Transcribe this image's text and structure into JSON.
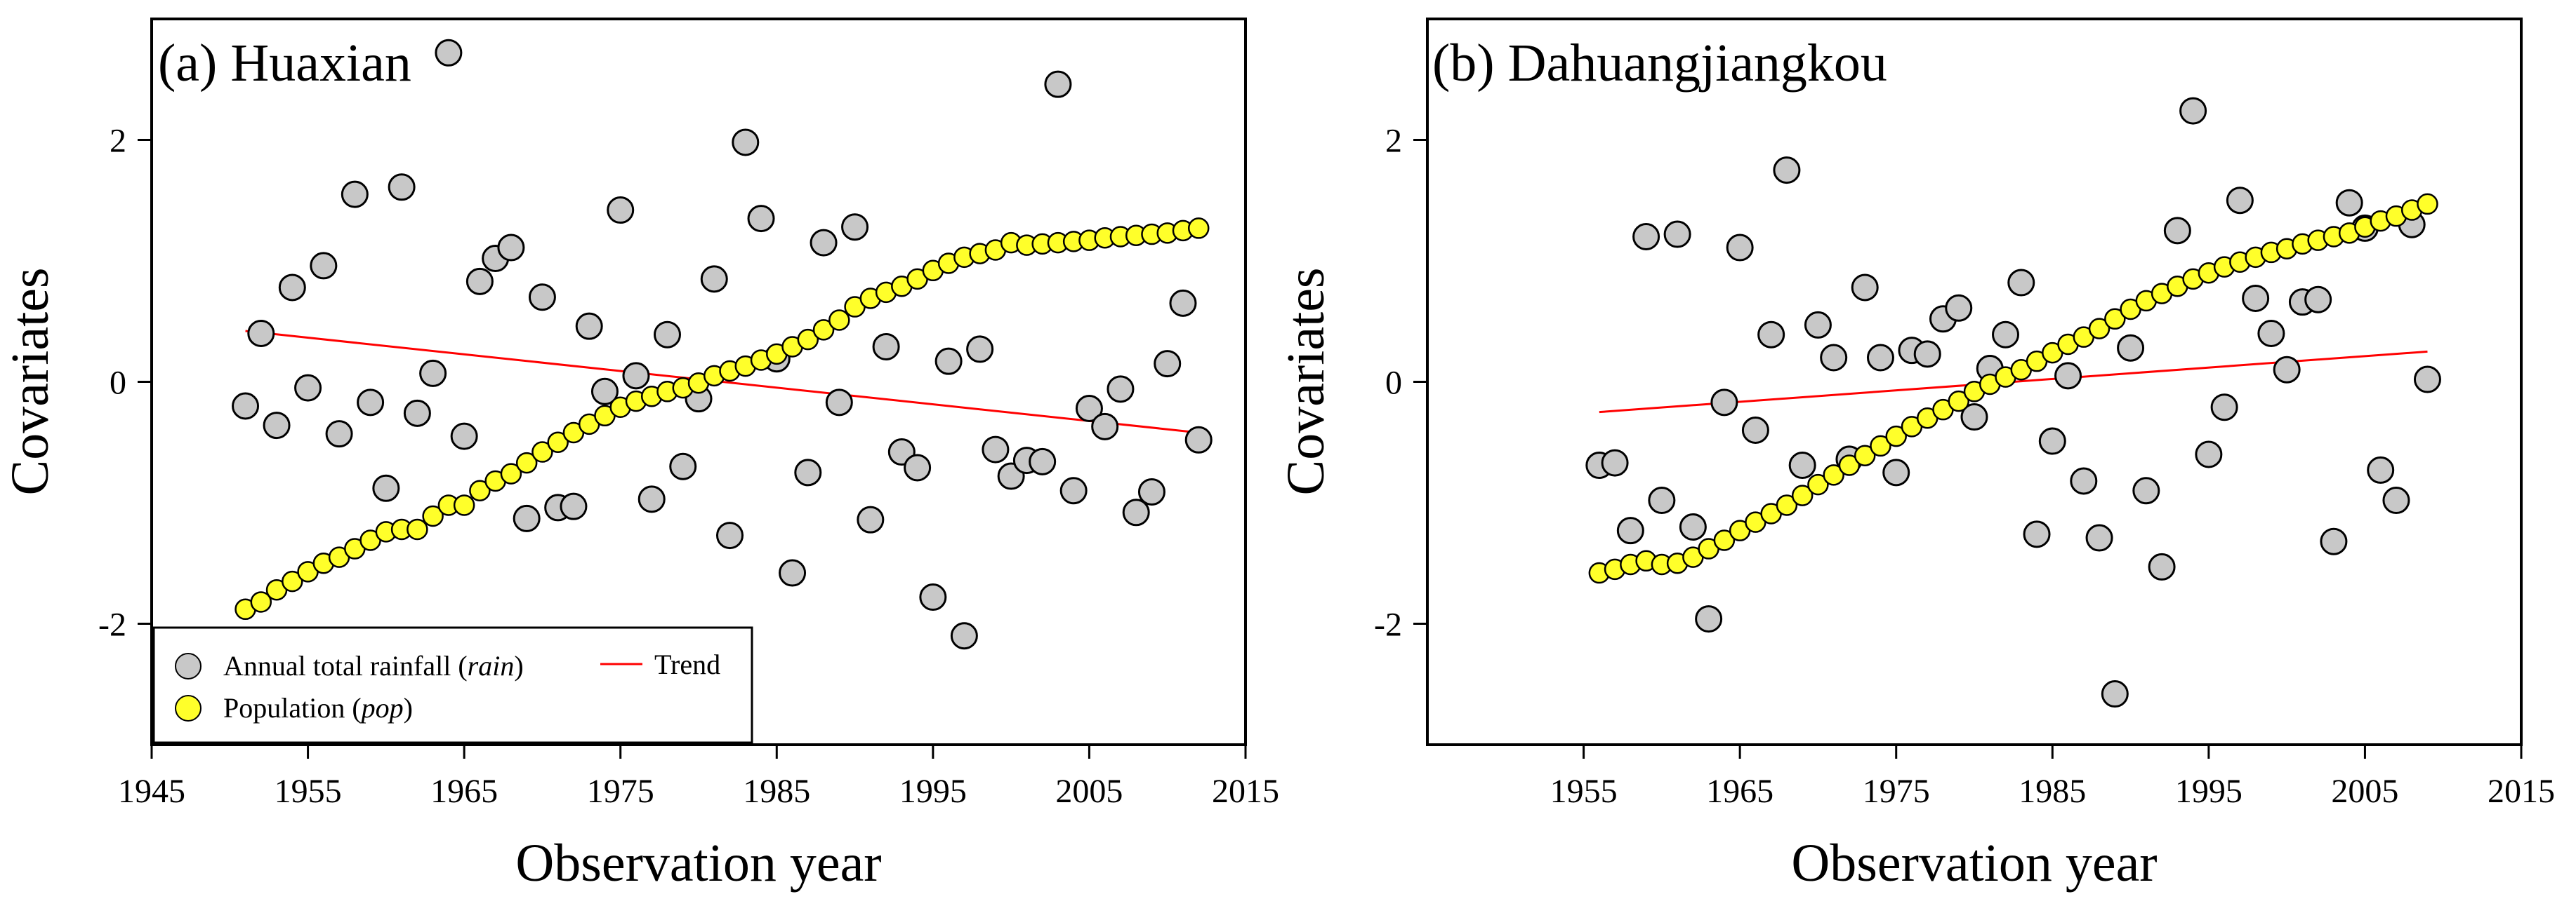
{
  "colors": {
    "rain_fill": "#c8c8c8",
    "pop_fill": "#ffff2a",
    "marker_stroke": "#000000",
    "trend": "#ff0000"
  },
  "chart_data": [
    {
      "type": "scatter",
      "panel_label": "(a) Huaxian",
      "xlabel": "Observation year",
      "ylabel": "Covariates",
      "xlim": [
        1945,
        2015
      ],
      "ylim": [
        -3,
        3
      ],
      "xticks": [
        1945,
        1955,
        1965,
        1975,
        1985,
        1995,
        2005,
        2015
      ],
      "yticks": [
        -2,
        0,
        2
      ],
      "legend": {
        "position": "bottom-left",
        "rain_label": "Annual total rainfall (",
        "rain_var": "rain",
        "rain_close": ")",
        "pop_label": "Population (",
        "pop_var": "pop",
        "pop_close": ")",
        "trend_label": "Trend"
      },
      "trend": {
        "x": [
          1951,
          2012
        ],
        "y": [
          0.42,
          -0.42
        ]
      },
      "series": [
        {
          "name": "Annual total rainfall (rain)",
          "x": [
            1951,
            1952,
            1953,
            1954,
            1955,
            1956,
            1957,
            1958,
            1959,
            1960,
            1961,
            1962,
            1963,
            1964,
            1965,
            1966,
            1967,
            1968,
            1969,
            1970,
            1971,
            1972,
            1973,
            1974,
            1975,
            1976,
            1977,
            1978,
            1979,
            1980,
            1981,
            1982,
            1983,
            1984,
            1985,
            1986,
            1987,
            1988,
            1989,
            1990,
            1991,
            1992,
            1993,
            1994,
            1995,
            1996,
            1997,
            1998,
            1999,
            2000,
            2001,
            2002,
            2003,
            2004,
            2005,
            2006,
            2007,
            2008,
            2009,
            2010,
            2011,
            2012
          ],
          "y": [
            -0.2,
            0.4,
            -0.36,
            0.78,
            -0.05,
            0.96,
            -0.43,
            1.55,
            -0.17,
            -0.88,
            1.61,
            -0.26,
            0.07,
            2.72,
            -0.45,
            0.83,
            1.02,
            1.11,
            -1.13,
            0.7,
            -1.04,
            -1.03,
            0.46,
            -0.08,
            1.42,
            0.05,
            -0.97,
            0.39,
            -0.7,
            -0.14,
            0.85,
            -1.27,
            1.98,
            1.35,
            0.19,
            -1.58,
            -0.75,
            1.15,
            -0.17,
            1.28,
            -1.14,
            0.29,
            -0.58,
            -0.71,
            -1.78,
            0.17,
            -2.1,
            0.27,
            -0.56,
            -0.78,
            -0.65,
            -0.66,
            2.46,
            -0.9,
            -0.22,
            -0.37,
            -0.06,
            -1.08,
            -0.91,
            0.15,
            0.65,
            -0.48
          ]
        },
        {
          "name": "Population (pop)",
          "x": [
            1951,
            1952,
            1953,
            1954,
            1955,
            1956,
            1957,
            1958,
            1959,
            1960,
            1961,
            1962,
            1963,
            1964,
            1965,
            1966,
            1967,
            1968,
            1969,
            1970,
            1971,
            1972,
            1973,
            1974,
            1975,
            1976,
            1977,
            1978,
            1979,
            1980,
            1981,
            1982,
            1983,
            1984,
            1985,
            1986,
            1987,
            1988,
            1989,
            1990,
            1991,
            1992,
            1993,
            1994,
            1995,
            1996,
            1997,
            1998,
            1999,
            2000,
            2001,
            2002,
            2003,
            2004,
            2005,
            2006,
            2007,
            2008,
            2009,
            2010,
            2011,
            2012
          ],
          "y": [
            -1.88,
            -1.82,
            -1.72,
            -1.65,
            -1.57,
            -1.5,
            -1.45,
            -1.38,
            -1.31,
            -1.24,
            -1.22,
            -1.22,
            -1.11,
            -1.02,
            -1.02,
            -0.9,
            -0.82,
            -0.76,
            -0.67,
            -0.58,
            -0.5,
            -0.42,
            -0.35,
            -0.28,
            -0.21,
            -0.16,
            -0.12,
            -0.08,
            -0.05,
            -0.01,
            0.05,
            0.09,
            0.13,
            0.18,
            0.23,
            0.29,
            0.35,
            0.43,
            0.51,
            0.62,
            0.69,
            0.74,
            0.79,
            0.85,
            0.92,
            0.98,
            1.03,
            1.06,
            1.09,
            1.15,
            1.13,
            1.14,
            1.15,
            1.16,
            1.17,
            1.19,
            1.2,
            1.21,
            1.22,
            1.23,
            1.25,
            1.27
          ]
        }
      ]
    },
    {
      "type": "scatter",
      "panel_label": "(b) Dahuangjiangkou",
      "xlabel": "Observation year",
      "ylabel": "Covariates",
      "xlim": [
        1945,
        2015
      ],
      "ylim": [
        -3,
        3
      ],
      "xticks": [
        1955,
        1965,
        1975,
        1985,
        1995,
        2005,
        2015
      ],
      "yticks": [
        -2,
        0,
        2
      ],
      "trend": {
        "x": [
          1956,
          2009
        ],
        "y": [
          -0.25,
          0.25
        ]
      },
      "series": [
        {
          "name": "Annual total rainfall (rain)",
          "x": [
            1956,
            1957,
            1958,
            1959,
            1960,
            1961,
            1962,
            1963,
            1964,
            1965,
            1966,
            1967,
            1968,
            1969,
            1970,
            1971,
            1972,
            1973,
            1974,
            1975,
            1976,
            1977,
            1978,
            1979,
            1980,
            1981,
            1982,
            1983,
            1984,
            1985,
            1986,
            1987,
            1988,
            1989,
            1990,
            1991,
            1992,
            1993,
            1994,
            1995,
            1996,
            1997,
            1998,
            1999,
            2000,
            2001,
            2002,
            2003,
            2004,
            2005,
            2006,
            2007,
            2008,
            2009
          ],
          "y": [
            -0.69,
            -0.67,
            -1.23,
            1.2,
            -0.98,
            1.22,
            -1.2,
            -1.96,
            -0.17,
            1.11,
            -0.4,
            0.39,
            1.75,
            -0.69,
            0.47,
            0.2,
            -0.64,
            0.78,
            0.2,
            -0.75,
            0.26,
            0.23,
            0.52,
            0.61,
            -0.29,
            0.11,
            0.39,
            0.82,
            -1.26,
            -0.49,
            0.05,
            -0.82,
            -1.29,
            -2.58,
            0.28,
            -0.9,
            -1.53,
            1.25,
            2.24,
            -0.6,
            -0.21,
            1.5,
            0.69,
            0.4,
            0.1,
            0.66,
            0.68,
            -1.32,
            1.48,
            1.27,
            -0.73,
            -0.98,
            1.3,
            0.02
          ]
        },
        {
          "name": "Population (pop)",
          "x": [
            1956,
            1957,
            1958,
            1959,
            1960,
            1961,
            1962,
            1963,
            1964,
            1965,
            1966,
            1967,
            1968,
            1969,
            1970,
            1971,
            1972,
            1973,
            1974,
            1975,
            1976,
            1977,
            1978,
            1979,
            1980,
            1981,
            1982,
            1983,
            1984,
            1985,
            1986,
            1987,
            1988,
            1989,
            1990,
            1991,
            1992,
            1993,
            1994,
            1995,
            1996,
            1997,
            1998,
            1999,
            2000,
            2001,
            2002,
            2003,
            2004,
            2005,
            2006,
            2007,
            2008,
            2009
          ],
          "y": [
            -1.58,
            -1.55,
            -1.51,
            -1.48,
            -1.51,
            -1.5,
            -1.45,
            -1.38,
            -1.31,
            -1.23,
            -1.16,
            -1.09,
            -1.02,
            -0.94,
            -0.85,
            -0.77,
            -0.69,
            -0.61,
            -0.53,
            -0.45,
            -0.37,
            -0.3,
            -0.23,
            -0.16,
            -0.08,
            -0.02,
            0.04,
            0.1,
            0.17,
            0.24,
            0.31,
            0.37,
            0.44,
            0.52,
            0.6,
            0.67,
            0.73,
            0.79,
            0.85,
            0.9,
            0.95,
            0.99,
            1.03,
            1.07,
            1.1,
            1.14,
            1.17,
            1.2,
            1.23,
            1.28,
            1.33,
            1.37,
            1.42,
            1.47
          ]
        }
      ]
    }
  ]
}
